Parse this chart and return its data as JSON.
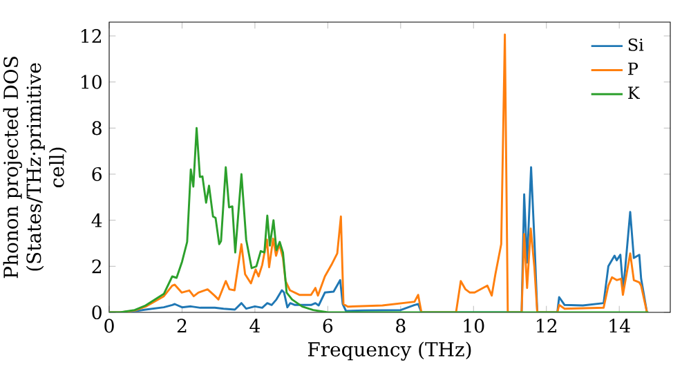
{
  "chart_data": {
    "type": "line",
    "xlabel": "Frequency (THz)",
    "ylabel": "Phonon projected DOS (States/THz·primitive cell)",
    "xlim": [
      0,
      15.4
    ],
    "ylim": [
      0,
      12.6
    ],
    "xticks": [
      0,
      2,
      4,
      6,
      8,
      10,
      12,
      14
    ],
    "yticks": [
      0,
      2,
      4,
      6,
      8,
      10,
      12
    ],
    "grid": false,
    "legend": "top right",
    "marker": "none",
    "line_style": "solid",
    "series": [
      {
        "name": "Si",
        "color": "#1f77b4",
        "x": [
          0,
          0.3,
          0.7,
          1.0,
          1.5,
          1.73,
          1.8,
          2.0,
          2.24,
          2.5,
          2.9,
          3.14,
          3.45,
          3.63,
          3.76,
          4.0,
          4.2,
          4.34,
          4.46,
          4.59,
          4.74,
          4.8,
          4.89,
          4.97,
          5.1,
          5.22,
          5.54,
          5.66,
          5.75,
          5.92,
          6.16,
          6.34,
          6.41,
          6.5,
          7.0,
          8.0,
          8.38,
          8.48,
          8.57,
          11.32,
          11.39,
          11.47,
          11.58,
          11.67,
          11.75,
          12.3,
          12.35,
          12.5,
          13.0,
          13.57,
          13.7,
          13.87,
          13.93,
          14.03,
          14.11,
          14.3,
          14.4,
          14.55,
          14.6,
          14.76
        ],
        "values": [
          0,
          0,
          0.05,
          0.12,
          0.22,
          0.32,
          0.36,
          0.22,
          0.26,
          0.2,
          0.2,
          0.16,
          0.12,
          0.4,
          0.16,
          0.26,
          0.2,
          0.4,
          0.32,
          0.56,
          0.96,
          0.86,
          0.22,
          0.4,
          0.32,
          0.32,
          0.32,
          0.4,
          0.3,
          0.86,
          0.9,
          1.4,
          0.36,
          0.06,
          0.08,
          0.1,
          0.32,
          0.36,
          0,
          0,
          5.12,
          2.16,
          6.3,
          3.16,
          0,
          0,
          0.66,
          0.32,
          0.3,
          0.4,
          2.0,
          2.46,
          2.26,
          2.5,
          0.96,
          4.36,
          2.36,
          2.5,
          1.46,
          0
        ]
      },
      {
        "name": "P",
        "color": "#ff7f0e",
        "x": [
          0,
          0.3,
          0.7,
          1.0,
          1.5,
          1.73,
          1.8,
          1.99,
          2.2,
          2.32,
          2.45,
          2.7,
          2.89,
          3.0,
          3.2,
          3.3,
          3.44,
          3.63,
          3.73,
          3.89,
          4.02,
          4.1,
          4.2,
          4.33,
          4.39,
          4.5,
          4.58,
          4.67,
          4.77,
          4.84,
          4.96,
          5.22,
          5.54,
          5.66,
          5.73,
          5.92,
          6.1,
          6.26,
          6.36,
          6.43,
          6.55,
          7.5,
          8.38,
          8.48,
          8.57,
          9.52,
          9.65,
          9.78,
          9.9,
          10.03,
          10.38,
          10.5,
          10.6,
          10.76,
          10.86,
          10.94,
          11.32,
          11.39,
          11.47,
          11.57,
          11.67,
          11.75,
          12.3,
          12.35,
          12.5,
          13.57,
          13.7,
          13.8,
          13.93,
          14.05,
          14.1,
          14.3,
          14.4,
          14.55,
          14.6,
          14.76
        ],
        "values": [
          0,
          0,
          0.08,
          0.25,
          0.7,
          1.16,
          1.2,
          0.86,
          0.95,
          0.7,
          0.86,
          1.0,
          0.73,
          0.56,
          1.36,
          1.0,
          0.96,
          2.96,
          1.66,
          1.26,
          1.86,
          1.56,
          2.06,
          3.16,
          1.96,
          3.2,
          2.46,
          2.96,
          2.36,
          1.36,
          0.96,
          0.76,
          0.76,
          1.06,
          0.73,
          1.56,
          2.06,
          2.56,
          4.16,
          0.36,
          0.25,
          0.3,
          0.46,
          0.76,
          0,
          0,
          1.36,
          1.0,
          0.86,
          0.86,
          1.16,
          0.73,
          1.66,
          2.96,
          12.06,
          0,
          0,
          3.4,
          1.06,
          3.64,
          1.96,
          0,
          0,
          0.32,
          0.16,
          0.2,
          1.16,
          1.52,
          1.4,
          1.46,
          0.76,
          2.56,
          1.4,
          1.3,
          1.16,
          0
        ]
      },
      {
        "name": "K",
        "color": "#2ca02c",
        "x": [
          0,
          0.3,
          0.7,
          1.0,
          1.5,
          1.73,
          1.85,
          2.0,
          2.14,
          2.24,
          2.31,
          2.4,
          2.49,
          2.56,
          2.66,
          2.74,
          2.85,
          2.92,
          3.02,
          3.07,
          3.2,
          3.29,
          3.38,
          3.46,
          3.63,
          3.76,
          3.91,
          4.04,
          4.16,
          4.26,
          4.34,
          4.41,
          4.51,
          4.59,
          4.68,
          4.77,
          4.87,
          5.02,
          5.3,
          5.6,
          6.0,
          14.8
        ],
        "values": [
          0,
          0,
          0.1,
          0.3,
          0.8,
          1.56,
          1.5,
          2.2,
          3.06,
          6.2,
          5.46,
          8.0,
          5.88,
          5.9,
          4.76,
          5.5,
          4.16,
          4.1,
          2.96,
          3.1,
          6.3,
          4.56,
          4.6,
          2.6,
          6.0,
          3.16,
          1.92,
          2.0,
          2.66,
          2.6,
          4.2,
          2.9,
          4.0,
          2.7,
          3.06,
          2.6,
          0.86,
          0.56,
          0.25,
          0.1,
          0,
          0
        ]
      }
    ]
  }
}
